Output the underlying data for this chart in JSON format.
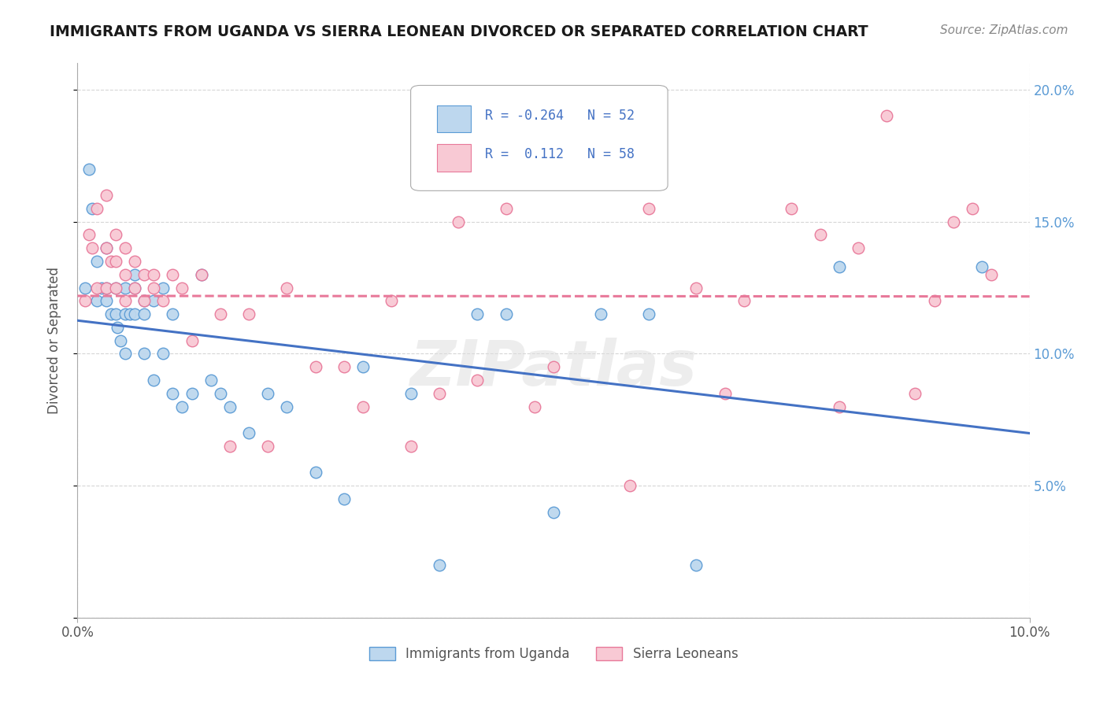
{
  "title": "IMMIGRANTS FROM UGANDA VS SIERRA LEONEAN DIVORCED OR SEPARATED CORRELATION CHART",
  "source": "Source: ZipAtlas.com",
  "ylabel": "Divorced or Separated",
  "uganda_R": -0.264,
  "uganda_N": 52,
  "sierraleone_R": 0.112,
  "sierraleone_N": 58,
  "legend_label_uganda": "Immigrants from Uganda",
  "legend_label_sierra": "Sierra Leoneans",
  "blue_fill": "#bdd7ee",
  "blue_edge": "#5b9bd5",
  "pink_fill": "#f8c9d4",
  "pink_edge": "#e8799a",
  "blue_line": "#4472c4",
  "pink_line": "#e8799a",
  "watermark": "ZIPatlas",
  "xlim": [
    0.0,
    0.1
  ],
  "ylim": [
    0.0,
    0.21
  ],
  "uganda_x": [
    0.0008,
    0.0012,
    0.0015,
    0.002,
    0.002,
    0.0025,
    0.003,
    0.003,
    0.003,
    0.0035,
    0.004,
    0.004,
    0.0042,
    0.0045,
    0.005,
    0.005,
    0.005,
    0.0055,
    0.006,
    0.006,
    0.006,
    0.007,
    0.007,
    0.007,
    0.008,
    0.008,
    0.009,
    0.009,
    0.01,
    0.01,
    0.011,
    0.012,
    0.013,
    0.014,
    0.015,
    0.016,
    0.018,
    0.02,
    0.022,
    0.025,
    0.028,
    0.03,
    0.035,
    0.038,
    0.042,
    0.045,
    0.05,
    0.055,
    0.06,
    0.065,
    0.08,
    0.095
  ],
  "uganda_y": [
    0.125,
    0.17,
    0.155,
    0.135,
    0.12,
    0.125,
    0.14,
    0.125,
    0.12,
    0.115,
    0.125,
    0.115,
    0.11,
    0.105,
    0.125,
    0.115,
    0.1,
    0.115,
    0.13,
    0.125,
    0.115,
    0.12,
    0.115,
    0.1,
    0.12,
    0.09,
    0.125,
    0.1,
    0.115,
    0.085,
    0.08,
    0.085,
    0.13,
    0.09,
    0.085,
    0.08,
    0.07,
    0.085,
    0.08,
    0.055,
    0.045,
    0.095,
    0.085,
    0.02,
    0.115,
    0.115,
    0.04,
    0.115,
    0.115,
    0.02,
    0.133,
    0.133
  ],
  "sierra_x": [
    0.0008,
    0.0012,
    0.0015,
    0.002,
    0.002,
    0.003,
    0.003,
    0.003,
    0.0035,
    0.004,
    0.004,
    0.004,
    0.005,
    0.005,
    0.005,
    0.006,
    0.006,
    0.007,
    0.007,
    0.008,
    0.008,
    0.009,
    0.01,
    0.011,
    0.012,
    0.013,
    0.015,
    0.016,
    0.018,
    0.02,
    0.022,
    0.025,
    0.028,
    0.03,
    0.033,
    0.035,
    0.038,
    0.04,
    0.042,
    0.045,
    0.048,
    0.05,
    0.055,
    0.058,
    0.06,
    0.065,
    0.068,
    0.07,
    0.075,
    0.078,
    0.08,
    0.082,
    0.085,
    0.088,
    0.09,
    0.092,
    0.094,
    0.096
  ],
  "sierra_y": [
    0.12,
    0.145,
    0.14,
    0.155,
    0.125,
    0.16,
    0.14,
    0.125,
    0.135,
    0.145,
    0.135,
    0.125,
    0.14,
    0.13,
    0.12,
    0.135,
    0.125,
    0.13,
    0.12,
    0.13,
    0.125,
    0.12,
    0.13,
    0.125,
    0.105,
    0.13,
    0.115,
    0.065,
    0.115,
    0.065,
    0.125,
    0.095,
    0.095,
    0.08,
    0.12,
    0.065,
    0.085,
    0.15,
    0.09,
    0.155,
    0.08,
    0.095,
    0.17,
    0.05,
    0.155,
    0.125,
    0.085,
    0.12,
    0.155,
    0.145,
    0.08,
    0.14,
    0.19,
    0.085,
    0.12,
    0.15,
    0.155,
    0.13
  ]
}
